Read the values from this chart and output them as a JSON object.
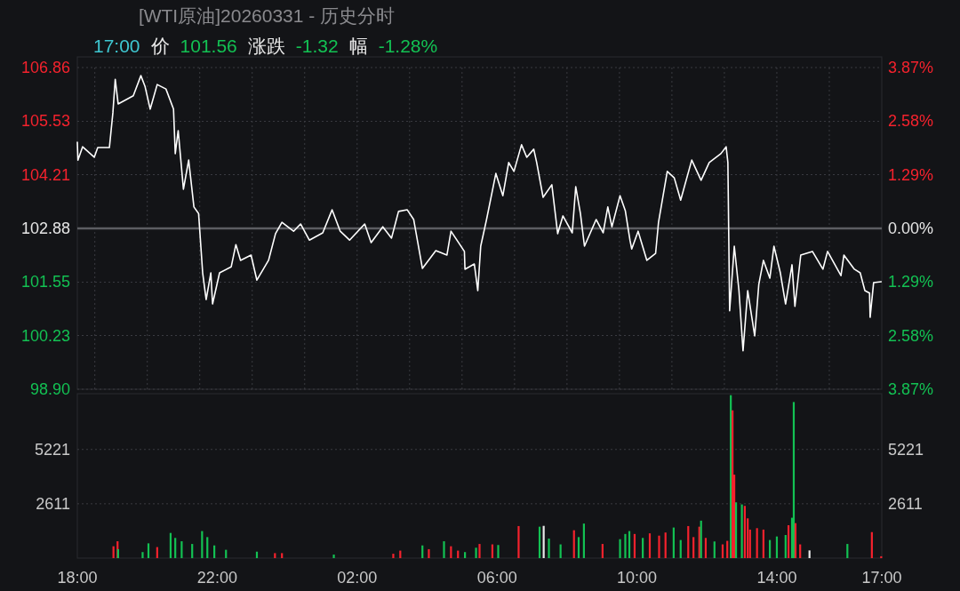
{
  "chart_data": [
    {
      "type": "line",
      "title": "[WTI原油]20260331 - 历史分时",
      "annotations": [
        "17:00",
        "价",
        "101.56",
        "涨跌",
        "-1.32",
        "幅",
        "-1.28%"
      ],
      "color": "#ffffff",
      "x": [
        "2026-03-30T18:00",
        "2026-03-30T18:01",
        "2026-03-30T18:09",
        "2026-03-30T18:29",
        "2026-03-30T18:35",
        "2026-03-30T18:55",
        "2026-03-30T19:01",
        "2026-03-30T19:05",
        "2026-03-30T19:10",
        "2026-03-30T19:36",
        "2026-03-30T19:49",
        "2026-03-30T19:56",
        "2026-03-30T20:05",
        "2026-03-30T20:17",
        "2026-03-30T20:32",
        "2026-03-30T20:45",
        "2026-03-30T20:48",
        "2026-03-30T20:53",
        "2026-03-30T21:02",
        "2026-03-30T21:11",
        "2026-03-30T21:20",
        "2026-03-30T21:28",
        "2026-03-30T21:35",
        "2026-03-30T21:41",
        "2026-03-30T21:49",
        "2026-03-30T21:52",
        "2026-03-30T22:04",
        "2026-03-30T22:24",
        "2026-03-30T22:32",
        "2026-03-30T22:40",
        "2026-03-30T22:58",
        "2026-03-30T23:08",
        "2026-03-30T23:28",
        "2026-03-30T23:40",
        "2026-03-30T23:51",
        "2026-03-31T00:11",
        "2026-03-31T00:23",
        "2026-03-31T00:38",
        "2026-03-31T01:01",
        "2026-03-31T01:17",
        "2026-03-31T01:31",
        "2026-03-31T01:47",
        "2026-03-31T02:13",
        "2026-03-31T02:24",
        "2026-03-31T02:44",
        "2026-03-31T02:59",
        "2026-03-31T03:11",
        "2026-03-31T03:26",
        "2026-03-31T03:37",
        "2026-03-31T03:52",
        "2026-03-31T04:15",
        "2026-03-31T04:34",
        "2026-03-31T04:41",
        "2026-03-31T05:04",
        "2026-03-31T05:05",
        "2026-03-31T05:21",
        "2026-03-31T05:27",
        "2026-03-31T05:32",
        "2026-03-31T05:42",
        "2026-03-31T05:58",
        "2026-03-31T06:10",
        "2026-03-31T06:20",
        "2026-03-31T06:29",
        "2026-03-31T06:42",
        "2026-03-31T06:51",
        "2026-03-31T07:03",
        "2026-03-31T07:08",
        "2026-03-31T07:19",
        "2026-03-31T07:34",
        "2026-03-31T07:44",
        "2026-03-31T07:53",
        "2026-03-31T08:09",
        "2026-03-31T08:15",
        "2026-03-31T08:23",
        "2026-03-31T08:30",
        "2026-03-31T08:50",
        "2026-03-31T09:02",
        "2026-03-31T09:10",
        "2026-03-31T09:17",
        "2026-03-31T09:31",
        "2026-03-31T09:40",
        "2026-03-31T09:48",
        "2026-03-31T09:51",
        "2026-03-31T10:02",
        "2026-03-31T10:17",
        "2026-03-31T10:32",
        "2026-03-31T10:37",
        "2026-03-31T10:52",
        "2026-03-31T11:04",
        "2026-03-31T11:15",
        "2026-03-31T11:34",
        "2026-03-31T11:50",
        "2026-03-31T12:04",
        "2026-03-31T12:24",
        "2026-03-31T12:33",
        "2026-03-31T12:36",
        "2026-03-31T12:39",
        "2026-03-31T12:47",
        "2026-03-31T12:55",
        "2026-03-31T13:02",
        "2026-03-31T13:10",
        "2026-03-31T13:22",
        "2026-03-31T13:29",
        "2026-03-31T13:37",
        "2026-03-31T13:48",
        "2026-03-31T13:55",
        "2026-03-31T14:06",
        "2026-03-31T14:15",
        "2026-03-31T14:26",
        "2026-03-31T14:31",
        "2026-03-31T14:41",
        "2026-03-31T15:01",
        "2026-03-31T15:19",
        "2026-03-31T15:27",
        "2026-03-31T15:50",
        "2026-03-31T15:55",
        "2026-03-31T16:13",
        "2026-03-31T16:23",
        "2026-03-31T16:31",
        "2026-03-31T16:39",
        "2026-03-31T16:40",
        "2026-03-31T16:46",
        "2026-03-31T16:59"
      ],
      "values": [
        105.01,
        104.57,
        104.9,
        104.64,
        104.88,
        104.88,
        105.74,
        106.57,
        105.96,
        106.16,
        106.66,
        106.4,
        105.83,
        106.44,
        106.33,
        105.83,
        104.73,
        105.3,
        103.85,
        104.57,
        103.41,
        103.25,
        101.78,
        101.12,
        101.78,
        101.01,
        101.78,
        101.93,
        102.48,
        102.09,
        102.22,
        101.6,
        102.09,
        102.75,
        103.03,
        102.81,
        102.99,
        102.59,
        102.77,
        103.34,
        102.81,
        102.59,
        102.99,
        102.53,
        102.92,
        102.64,
        103.3,
        103.34,
        103.1,
        101.89,
        102.33,
        102.22,
        102.81,
        102.31,
        101.87,
        102.0,
        101.34,
        102.44,
        103.1,
        104.24,
        103.69,
        104.51,
        104.29,
        104.95,
        104.64,
        104.84,
        104.51,
        103.65,
        103.96,
        102.75,
        103.19,
        102.77,
        103.91,
        103.25,
        102.44,
        103.1,
        102.77,
        103.41,
        102.92,
        103.69,
        103.32,
        102.59,
        102.37,
        102.81,
        102.09,
        102.26,
        103.03,
        104.29,
        104.13,
        103.58,
        104.57,
        104.07,
        104.51,
        104.73,
        104.9,
        104.51,
        100.84,
        102.44,
        101.34,
        99.85,
        101.34,
        100.22,
        101.49,
        102.09,
        101.65,
        102.44,
        101.78,
        101.01,
        101.98,
        100.95,
        102.22,
        102.31,
        101.87,
        102.31,
        101.71,
        102.22,
        101.87,
        101.78,
        101.34,
        101.28,
        100.68,
        101.54,
        101.56
      ],
      "xlim": [
        "2026-03-30T18:00",
        "2026-03-31T17:00"
      ],
      "xticks": [
        {
          "value": "2026-03-30T18:30",
          "label": null
        },
        {
          "value": "2026-03-30T20:00",
          "label": null
        },
        {
          "value": "2026-03-30T21:30",
          "label": null
        },
        {
          "value": "2026-03-30T23:00",
          "label": null
        },
        {
          "value": "2026-03-31T00:30",
          "label": null
        },
        {
          "value": "2026-03-31T02:00",
          "label": null
        },
        {
          "value": "2026-03-31T03:30",
          "label": null
        },
        {
          "value": "2026-03-31T05:00",
          "label": null
        },
        {
          "value": "2026-03-31T06:30",
          "label": null
        },
        {
          "value": "2026-03-31T08:00",
          "label": null
        },
        {
          "value": "2026-03-31T09:30",
          "label": null
        },
        {
          "value": "2026-03-31T11:00",
          "label": null
        },
        {
          "value": "2026-03-31T12:30",
          "label": null
        },
        {
          "value": "2026-03-31T14:00",
          "label": null
        },
        {
          "value": "2026-03-31T15:30",
          "label": null
        }
      ],
      "ylim": [
        98.9,
        106.86
      ],
      "yticks": [
        {
          "value": 98.9,
          "label": "98.90"
        },
        100.23,
        101.55,
        102.88,
        104.21,
        105.53,
        106.86
      ],
      "y2lim": [
        -3.87,
        3.87
      ],
      "y2ticks": [
        {
          "value": -3.87,
          "label": "3.87%"
        },
        {
          "value": -2.58,
          "label": "2.58%"
        },
        {
          "value": -1.29,
          "label": "1.29%"
        },
        {
          "value": 0,
          "label": "0.00%"
        },
        {
          "value": 1.29,
          "label": "1.29%"
        },
        {
          "value": 2.58,
          "label": "2.58%"
        },
        {
          "value": 3.87,
          "label": "3.87%"
        }
      ],
      "ref_lines": [
        {
          "axis": "y",
          "value": 102.88,
          "color": "#5c5d62"
        }
      ],
      "grid": true,
      "tick_labels": "y"
    },
    {
      "type": "bar",
      "x": [
        "2026-03-30T19:02",
        "2026-03-30T19:09",
        "2026-03-30T19:10",
        "2026-03-30T19:52",
        "2026-03-30T20:02",
        "2026-03-30T20:17",
        "2026-03-30T20:40",
        "2026-03-30T20:48",
        "2026-03-30T20:59",
        "2026-03-30T21:17",
        "2026-03-30T21:34",
        "2026-03-30T21:43",
        "2026-03-30T21:55",
        "2026-03-30T22:15",
        "2026-03-30T23:08",
        "2026-03-30T23:39",
        "2026-03-30T23:51",
        "2026-03-31T01:20",
        "2026-03-31T03:02",
        "2026-03-31T03:14",
        "2026-03-31T03:52",
        "2026-03-31T04:03",
        "2026-03-31T04:29",
        "2026-03-31T04:41",
        "2026-03-31T04:53",
        "2026-03-31T05:05",
        "2026-03-31T05:24",
        "2026-03-31T05:30",
        "2026-03-31T05:52",
        "2026-03-31T06:02",
        "2026-03-31T06:37",
        "2026-03-31T07:13",
        "2026-03-31T07:20",
        "2026-03-31T07:29",
        "2026-03-31T07:49",
        "2026-03-31T08:12",
        "2026-03-31T08:20",
        "2026-03-31T08:29",
        "2026-03-31T09:01",
        "2026-03-31T09:31",
        "2026-03-31T09:40",
        "2026-03-31T09:47",
        "2026-03-31T09:56",
        "2026-03-31T10:10",
        "2026-03-31T10:22",
        "2026-03-31T10:38",
        "2026-03-31T10:49",
        "2026-03-31T11:03",
        "2026-03-31T11:15",
        "2026-03-31T11:28",
        "2026-03-31T11:37",
        "2026-03-31T11:47",
        "2026-03-31T11:50",
        "2026-03-31T11:58",
        "2026-03-31T12:13",
        "2026-03-31T12:27",
        "2026-03-31T12:35",
        "2026-03-31T12:41",
        "2026-03-31T12:44",
        "2026-03-31T12:47",
        "2026-03-31T12:50",
        "2026-03-31T13:00",
        "2026-03-31T13:05",
        "2026-03-31T13:10",
        "2026-03-31T13:14",
        "2026-03-31T13:26",
        "2026-03-31T13:37",
        "2026-03-31T13:48",
        "2026-03-31T14:00",
        "2026-03-31T14:15",
        "2026-03-31T14:20",
        "2026-03-31T14:26",
        "2026-03-31T14:29",
        "2026-03-31T14:32",
        "2026-03-31T14:40",
        "2026-03-31T14:56",
        "2026-03-31T16:01",
        "2026-03-31T16:43",
        "2026-03-31T16:59"
      ],
      "values": [
        570,
        810,
        430,
        290,
        710,
        530,
        1210,
        970,
        810,
        680,
        1300,
        1010,
        610,
        400,
        310,
        240,
        240,
        170,
        210,
        360,
        610,
        430,
        810,
        570,
        360,
        290,
        500,
        680,
        660,
        630,
        1540,
        1510,
        1550,
        940,
        660,
        1340,
        1010,
        1660,
        680,
        910,
        1160,
        1300,
        1160,
        970,
        1190,
        1080,
        1230,
        1470,
        870,
        1540,
        1010,
        1510,
        1800,
        970,
        800,
        660,
        830,
        7830,
        7100,
        4010,
        2680,
        2580,
        2510,
        1910,
        1370,
        1440,
        1370,
        870,
        1040,
        1110,
        1580,
        1940,
        7500,
        1680,
        660,
        370,
        680,
        1250,
        90
      ],
      "colors": [
        "#f5222d",
        "#f5222d",
        "#13c153",
        "#13c153",
        "#13c153",
        "#f5222d",
        "#13c153",
        "#13c153",
        "#13c153",
        "#13c153",
        "#13c153",
        "#13c153",
        "#13c153",
        "#13c153",
        "#13c153",
        "#f5222d",
        "#f5222d",
        "#13c153",
        "#f5222d",
        "#f5222d",
        "#13c153",
        "#f5222d",
        "#13c153",
        "#f5222d",
        "#f5222d",
        "#13c153",
        "#13c153",
        "#f5222d",
        "#f5222d",
        "#13c153",
        "#f5222d",
        "#13c153",
        "#e8e8e8",
        "#13c153",
        "#13c153",
        "#f5222d",
        "#13c153",
        "#13c153",
        "#f5222d",
        "#13c153",
        "#13c153",
        "#13c153",
        "#f5222d",
        "#13c153",
        "#f5222d",
        "#f5222d",
        "#f5222d",
        "#13c153",
        "#13c153",
        "#f5222d",
        "#f5222d",
        "#f5222d",
        "#13c153",
        "#f5222d",
        "#13c153",
        "#f5222d",
        "#f5222d",
        "#13c153",
        "#f5222d",
        "#f5222d",
        "#13c153",
        "#13c153",
        "#f5222d",
        "#f5222d",
        "#f5222d",
        "#f5222d",
        "#f5222d",
        "#13c153",
        "#13c153",
        "#13c153",
        "#f5222d",
        "#13c153",
        "#13c153",
        "#f5222d",
        "#f5222d",
        "#e8e8e8",
        "#13c153",
        "#f5222d",
        "#f5222d"
      ],
      "xlim": [
        "2026-03-30T18:00",
        "2026-03-31T17:00"
      ],
      "xticks": [
        {
          "value": "2026-03-30T18:00",
          "label": "18:00"
        },
        {
          "value": "2026-03-30T22:00",
          "label": "22:00"
        },
        {
          "value": "2026-03-31T02:00",
          "label": "02:00"
        },
        {
          "value": "2026-03-31T06:00",
          "label": "06:00"
        },
        {
          "value": "2026-03-31T10:00",
          "label": "10:00"
        },
        {
          "value": "2026-03-31T14:00",
          "label": "14:00"
        },
        {
          "value": "2026-03-31T17:00",
          "label": "17:00"
        }
      ],
      "ylim": [
        0,
        7900
      ],
      "yticks": [
        2611,
        5221
      ],
      "y2lim": [
        0,
        7900
      ],
      "y2ticks": [
        2611,
        5221
      ],
      "grid": "y"
    }
  ]
}
